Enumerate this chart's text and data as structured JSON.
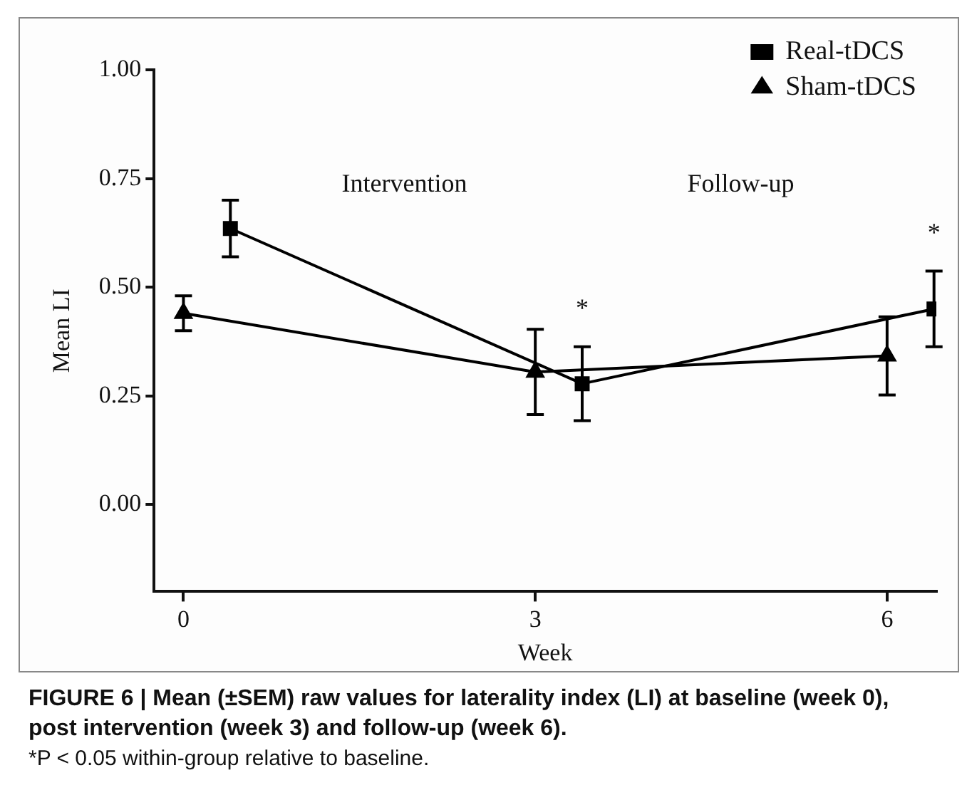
{
  "chart_data": {
    "type": "line",
    "title": "FIGURE 6 | Mean (±SEM) raw values for laterality index (LI) at baseline (week 0), post intervention (week 3) and follow-up (week 6).",
    "xlabel": "Week",
    "ylabel": "Mean LI",
    "xlim": [
      -0.25,
      6.42
    ],
    "xticks": [
      0,
      3,
      6
    ],
    "ylim": [
      -0.2,
      1.0
    ],
    "yticks": [
      {
        "value": 0,
        "label": "0.00"
      },
      {
        "value": 0.25,
        "label": "0.25"
      },
      {
        "value": 0.5,
        "label": "0.50"
      },
      {
        "value": 0.75,
        "label": "0.75"
      },
      {
        "value": 1,
        "label": "1.00"
      }
    ],
    "grid": false,
    "legend": "top right",
    "series": [
      {
        "name": "Real-tDCS",
        "color": "#000000",
        "marker": "square",
        "x": [
          0.4,
          3.4,
          6.4
        ],
        "values": [
          0.635,
          0.278,
          0.45
        ],
        "errors": [
          0.065,
          0.085,
          0.087
        ]
      },
      {
        "name": "Sham-tDCS",
        "color": "#000000",
        "marker": "triangle",
        "x": [
          0,
          3,
          6
        ],
        "values": [
          0.44,
          0.305,
          0.342
        ],
        "errors": [
          0.04,
          0.098,
          0.09
        ]
      }
    ],
    "annotations": [
      "Intervention",
      "Follow-up",
      {
        "text": "*",
        "x": 3.4,
        "y": 0.278
      },
      {
        "text": "*",
        "x": 6.4,
        "y": 0.45
      },
      "*P < 0.05 within-group relative to baseline."
    ]
  }
}
